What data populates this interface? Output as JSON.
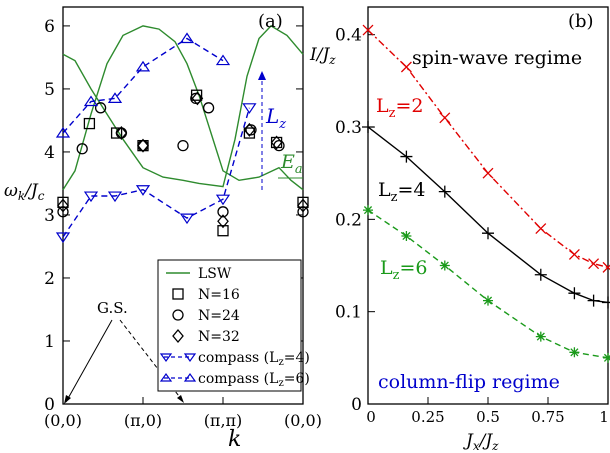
{
  "chart_data": [
    {
      "type": "line",
      "panel_label": "(a)",
      "xlabel": "k",
      "ylabel": "ω",
      "ylabel_sub": "k",
      "ylabel_rest": "/J",
      "ylabel_sub2": "c",
      "x_ticks": [
        "(0,0)",
        "(π,0)",
        "(π,π)",
        "(0,0)"
      ],
      "x_tick_values": [
        0,
        1,
        2,
        3
      ],
      "ylim": [
        0,
        6.3
      ],
      "y_ticks": [
        0,
        1,
        2,
        3,
        4,
        5,
        6
      ],
      "annotations": {
        "gs": "G.S.",
        "lz_main": "L",
        "lz_sub": "z",
        "ea_main": "E",
        "ea_sub": "a"
      },
      "legend": {
        "placement": "bottom-right",
        "entries": [
          {
            "label": "LSW",
            "marker": "line",
            "color": "#2e8b2e"
          },
          {
            "label": "N=16",
            "marker": "square",
            "color": "#000000"
          },
          {
            "label": "N=24",
            "marker": "circle",
            "color": "#000000"
          },
          {
            "label": "N=32",
            "marker": "diamond",
            "color": "#000000"
          },
          {
            "label": "compass (L",
            "sub": "z",
            "tail": "=4)",
            "marker": "triangle-down",
            "color": "#0000cc"
          },
          {
            "label": "compass (L",
            "sub": "z",
            "tail": "=6)",
            "marker": "triangle-up",
            "color": "#0000cc"
          }
        ]
      },
      "series": [
        {
          "name": "LSW",
          "color": "#2e8b2e",
          "style": "solid",
          "x": [
            0,
            0.15,
            0.35,
            0.55,
            0.75,
            1.0,
            1.25,
            1.5,
            1.7,
            2.0,
            2.15,
            2.3,
            2.45,
            2.6,
            2.8,
            3.0
          ],
          "y": [
            5.55,
            5.45,
            5.0,
            4.6,
            4.2,
            3.75,
            3.6,
            3.55,
            3.5,
            3.45,
            4.2,
            5.2,
            5.8,
            6.0,
            5.85,
            5.55
          ]
        },
        {
          "name": "LSW",
          "color": "#2e8b2e",
          "style": "solid",
          "x": [
            0,
            0.15,
            0.35,
            0.55,
            0.75,
            1.0,
            1.2,
            1.4,
            1.55,
            1.7,
            1.85,
            2.0,
            2.2,
            2.45,
            2.7,
            2.85,
            3.0
          ],
          "y": [
            3.4,
            3.7,
            4.6,
            5.4,
            5.85,
            6.0,
            5.95,
            5.75,
            5.4,
            4.9,
            4.3,
            3.7,
            3.55,
            3.6,
            3.75,
            3.55,
            3.4
          ]
        },
        {
          "name": "N=16",
          "color": "#000000",
          "marker": "square",
          "x": [
            0,
            0.33,
            0.67,
            1.0,
            1.67,
            2.0,
            2.33,
            2.67,
            3.0
          ],
          "y": [
            3.2,
            4.45,
            4.3,
            4.1,
            4.9,
            2.75,
            4.3,
            4.15,
            3.2
          ]
        },
        {
          "name": "N=24",
          "color": "#000000",
          "marker": "circle",
          "x": [
            0,
            0.24,
            0.47,
            0.73,
            1.0,
            1.5,
            1.66,
            1.82,
            2.0,
            2.35,
            2.7,
            3.0
          ],
          "y": [
            3.05,
            4.05,
            4.7,
            4.3,
            4.1,
            4.1,
            4.85,
            4.7,
            3.05,
            4.35,
            4.1,
            3.05
          ]
        },
        {
          "name": "N=32",
          "color": "#000000",
          "marker": "diamond",
          "x": [
            0,
            0.73,
            1.0,
            1.68,
            2.0,
            2.33,
            2.67,
            3.0
          ],
          "y": [
            3.15,
            4.3,
            4.1,
            4.85,
            2.9,
            4.35,
            4.15,
            3.15
          ]
        },
        {
          "name": "compass (Lz=4)",
          "color": "#0000cc",
          "marker": "triangle-down",
          "style": "dashed",
          "x": [
            0,
            0.35,
            0.65,
            1.0,
            1.55,
            2.0,
            2.33
          ],
          "y": [
            2.65,
            3.3,
            3.3,
            3.4,
            2.95,
            3.25,
            4.7
          ]
        },
        {
          "name": "compass (Lz=6)",
          "color": "#0000cc",
          "marker": "triangle-up",
          "style": "dashed",
          "x": [
            0,
            0.35,
            0.65,
            1.0,
            1.55,
            2.0
          ],
          "y": [
            4.3,
            4.8,
            4.85,
            5.35,
            5.8,
            5.45
          ]
        }
      ]
    },
    {
      "type": "line",
      "panel_label": "(b)",
      "xlabel": "J",
      "xlabel_sub": "x",
      "xlabel_rest": "/J",
      "xlabel_sub2": "z",
      "ylabel": "I/J",
      "ylabel_sub": "z",
      "xlim": [
        0,
        1
      ],
      "ylim": [
        0,
        0.43
      ],
      "x_ticks": [
        "0",
        "0.25",
        "0.5",
        "0.75",
        "1"
      ],
      "x_tick_values": [
        0,
        0.25,
        0.5,
        0.75,
        1
      ],
      "y_ticks": [
        "0",
        "0.1",
        "0.2",
        "0.3",
        "0.4"
      ],
      "y_tick_values": [
        0,
        0.1,
        0.2,
        0.3,
        0.4
      ],
      "annotations": {
        "top": "spin-wave regime",
        "bottom": "column-flip regime"
      },
      "series": [
        {
          "name_main": "L",
          "name_sub": "z",
          "name_tail": "=2",
          "color": "#e00000",
          "marker": "x",
          "style": "dashdot",
          "x": [
            0,
            0.16,
            0.32,
            0.5,
            0.72,
            0.86,
            0.94,
            1.0
          ],
          "y": [
            0.405,
            0.365,
            0.31,
            0.25,
            0.19,
            0.162,
            0.152,
            0.148
          ]
        },
        {
          "name_main": "L",
          "name_sub": "z",
          "name_tail": "=4",
          "color": "#000000",
          "marker": "plus",
          "style": "solid",
          "x": [
            0,
            0.16,
            0.32,
            0.5,
            0.72,
            0.86,
            0.94,
            1.0
          ],
          "y": [
            0.3,
            0.268,
            0.23,
            0.185,
            0.14,
            0.12,
            0.112,
            0.11
          ]
        },
        {
          "name_main": "L",
          "name_sub": "z",
          "name_tail": "=6",
          "color": "#1a9a1a",
          "marker": "star",
          "style": "dashed",
          "x": [
            0,
            0.16,
            0.32,
            0.5,
            0.72,
            0.86,
            1.0
          ],
          "y": [
            0.21,
            0.182,
            0.15,
            0.112,
            0.073,
            0.056,
            0.05
          ]
        }
      ]
    }
  ]
}
